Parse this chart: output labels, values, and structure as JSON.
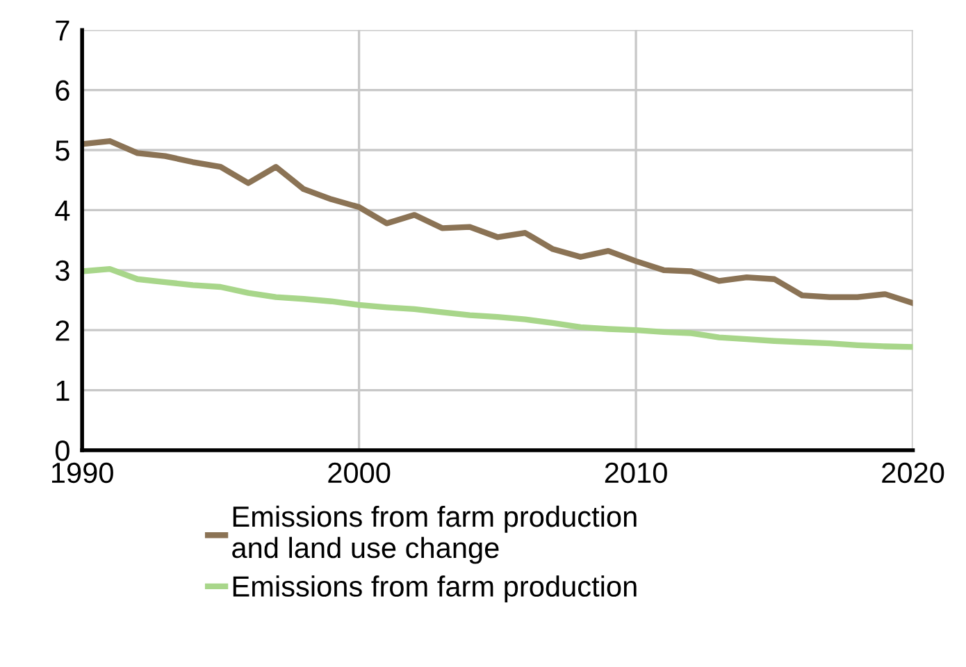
{
  "chart_data": {
    "type": "line",
    "x": [
      1990,
      1991,
      1992,
      1993,
      1994,
      1995,
      1996,
      1997,
      1998,
      1999,
      2000,
      2001,
      2002,
      2003,
      2004,
      2005,
      2006,
      2007,
      2008,
      2009,
      2010,
      2011,
      2012,
      2013,
      2014,
      2015,
      2016,
      2017,
      2018,
      2019,
      2020
    ],
    "series": [
      {
        "name": "Emissions from farm production\nand land use change",
        "color": "#8b7355",
        "values": [
          5.1,
          5.15,
          4.95,
          4.9,
          4.8,
          4.72,
          4.45,
          4.72,
          4.35,
          4.18,
          4.05,
          3.78,
          3.92,
          3.7,
          3.72,
          3.55,
          3.62,
          3.35,
          3.22,
          3.32,
          3.15,
          3.0,
          2.98,
          2.82,
          2.88,
          2.85,
          2.58,
          2.55,
          2.55,
          2.6,
          2.45
        ]
      },
      {
        "name": "Emissions from farm production",
        "color": "#a8d68a",
        "values": [
          2.98,
          3.02,
          2.85,
          2.8,
          2.75,
          2.72,
          2.62,
          2.55,
          2.52,
          2.48,
          2.42,
          2.38,
          2.35,
          2.3,
          2.25,
          2.22,
          2.18,
          2.12,
          2.05,
          2.02,
          2.0,
          1.97,
          1.95,
          1.88,
          1.85,
          1.82,
          1.8,
          1.78,
          1.75,
          1.73,
          1.72
        ]
      }
    ],
    "xlim": [
      1990,
      2020
    ],
    "xticks": [
      1990,
      2000,
      2010,
      2020
    ],
    "ylim": [
      0,
      7
    ],
    "yticks": [
      0,
      1,
      2,
      3,
      4,
      5,
      6,
      7
    ],
    "grid": true,
    "legend": "bottom",
    "marker": "none",
    "line_style": "solid"
  }
}
